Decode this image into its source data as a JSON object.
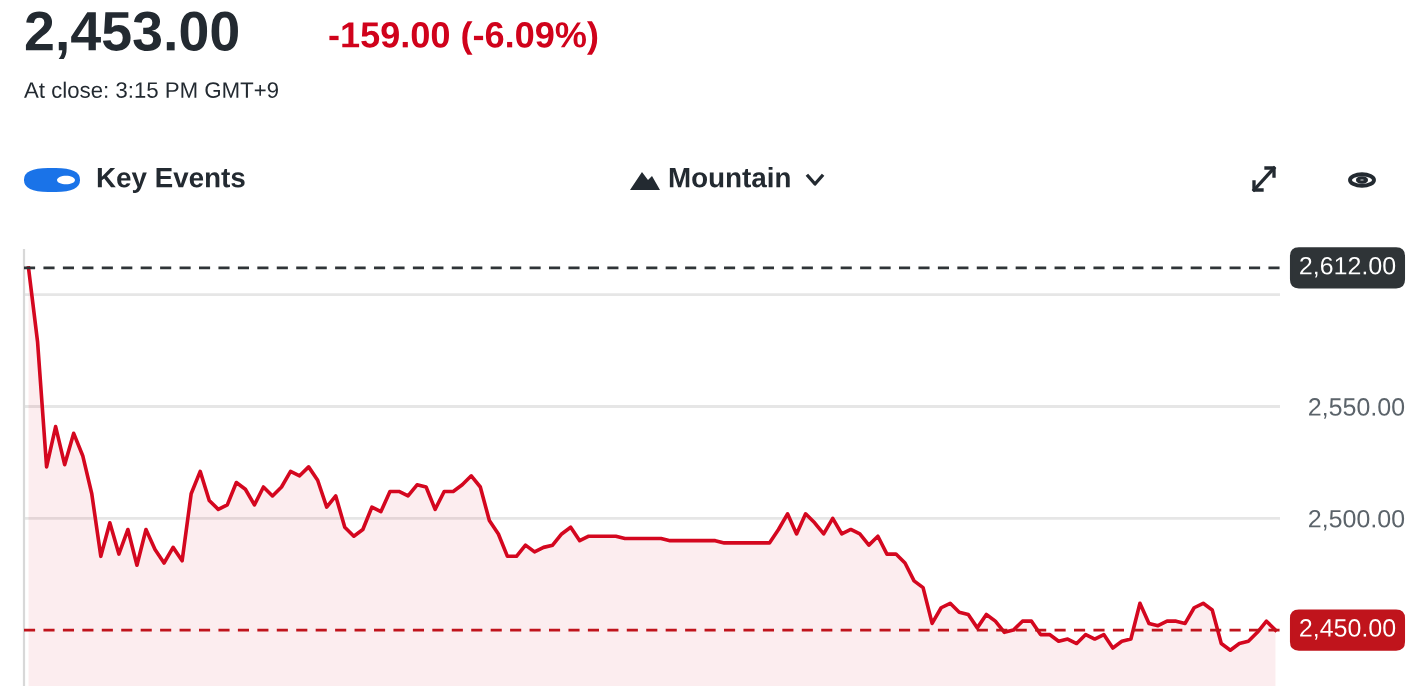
{
  "chart_data": {
    "type": "area",
    "title": "2,453.00",
    "subtitle": "-159.00 (-6.09%)",
    "annotations": [
      "At close: 3:15 PM GMT+9",
      "Key Events",
      "Mountain"
    ],
    "categories": [
      null,
      null,
      null,
      null,
      null,
      null,
      null,
      null,
      null,
      null,
      null,
      null,
      null,
      null,
      null,
      null,
      null,
      null,
      null,
      null,
      null,
      null,
      null,
      null,
      null,
      null,
      null,
      null,
      null,
      null,
      null,
      null,
      null,
      null,
      null,
      null,
      null,
      null,
      null,
      null,
      null,
      null,
      null,
      null,
      null,
      null,
      null,
      null,
      null,
      null,
      null,
      null,
      null,
      null,
      null,
      null,
      null,
      null,
      null,
      null,
      null,
      null,
      null,
      null,
      null,
      null,
      null,
      null,
      null,
      null,
      null,
      null,
      null,
      null,
      null,
      null,
      null,
      null,
      null,
      null,
      null,
      null,
      null,
      null,
      null,
      null,
      null,
      null,
      null,
      null,
      null,
      null,
      null,
      null,
      null,
      null,
      null,
      null,
      null,
      null,
      null,
      null,
      null,
      null,
      null,
      null,
      null,
      null,
      null,
      null,
      null,
      null,
      null,
      null,
      null,
      null,
      null,
      null,
      null,
      null,
      null,
      null,
      null,
      null,
      null,
      null,
      null,
      null,
      null,
      null,
      null,
      null,
      null,
      null,
      null,
      null,
      null,
      null,
      null
    ],
    "series": [
      {
        "color": "#d4071f",
        "values": [
          2612,
          2579,
          2523,
          2541,
          2524,
          2538,
          2528,
          2511,
          2483,
          2498,
          2484,
          2495,
          2479,
          2495,
          2486,
          2480,
          2487,
          2481,
          2511,
          2521,
          2508,
          2504,
          2506,
          2516,
          2513,
          2506,
          2514,
          2510,
          2514,
          2521,
          2519,
          2523,
          2517,
          2505,
          2510,
          2496,
          2492,
          2495,
          2505,
          2503,
          2512,
          2512,
          2510,
          2515,
          2514,
          2504,
          2512,
          2512,
          2515,
          2519,
          2514,
          2499,
          2493,
          2483,
          2483,
          2488,
          2485,
          2487,
          2488,
          2493,
          2496,
          2490,
          2492,
          2492,
          2492,
          2492,
          2491,
          2491,
          2491,
          2491,
          2491,
          2490,
          2490,
          2490,
          2490,
          2490,
          2490,
          2489,
          2489,
          2489,
          2489,
          2489,
          2489,
          2495,
          2502,
          2493,
          2502,
          2498,
          2493,
          2500,
          2493,
          2495,
          2493,
          2488,
          2492,
          2484,
          2484,
          2480,
          2472,
          2469,
          2453,
          2460,
          2462,
          2458,
          2457,
          2451,
          2457,
          2454,
          2449,
          2450,
          2454,
          2454,
          2448,
          2448,
          2445,
          2446,
          2444,
          2448,
          2446,
          2448,
          2442,
          2445,
          2446,
          2462,
          2453,
          2452,
          2454,
          2454,
          2453,
          2460,
          2462,
          2459,
          2444,
          2441,
          2444,
          2445,
          2449,
          2454,
          2450
        ]
      }
    ],
    "ylim": [
      2425,
      2620
    ],
    "yticks": [
      {
        "value": 2500,
        "label": "2,500.00"
      },
      {
        "value": 2550,
        "label": "2,550.00"
      },
      {
        "value": 2600,
        "label": null
      }
    ],
    "tick_labels": "y",
    "grid": "y",
    "ref_lines": [
      {
        "axis": "y",
        "value": 2612,
        "label": "2,612.00",
        "color": "#2f3437",
        "line_style": "dashed"
      },
      {
        "axis": "y",
        "value": 2450,
        "label": "2,450.00",
        "color": "#c0141c",
        "line_style": "dashed"
      }
    ]
  }
}
